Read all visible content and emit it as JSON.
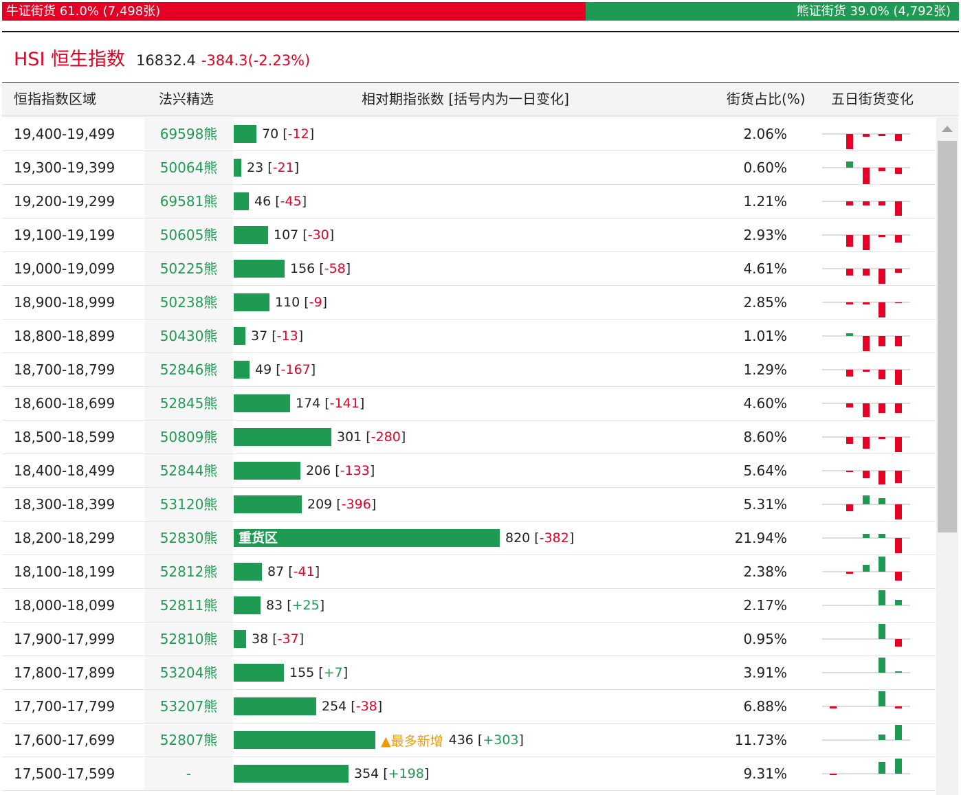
{
  "ratio_bar": {
    "bull_label": "牛证街货 61.0% (7,498张)",
    "bull_fraction": 0.61,
    "bear_label": "熊证街货 39.0% (4,792张)",
    "bear_fraction": 0.39
  },
  "index": {
    "name": "HSI 恒生指数",
    "value": "16832.4",
    "change": "-384.3(-2.23%)"
  },
  "table": {
    "headers": {
      "range": "恒指指数区域",
      "code": "法兴精选",
      "bar": "相对期指张数 [括号内为一日变化]",
      "pct": "街货占比(%)",
      "spark": "五日街货变化"
    },
    "colors": {
      "bar": "#1f9a52",
      "up": "#1f9a52",
      "down": "#e60023",
      "badge": "#f09a00"
    },
    "rows": [
      {
        "range": "19,400-19,499",
        "code": "69598熊",
        "count": 70,
        "change": "-12",
        "pct": "2.06%",
        "five_day": [
          0,
          -22,
          -4,
          -3,
          -10
        ]
      },
      {
        "range": "19,300-19,399",
        "code": "50064熊",
        "count": 23,
        "change": "-21",
        "pct": "0.60%",
        "five_day": [
          0,
          9,
          -24,
          -5,
          -9
        ]
      },
      {
        "range": "19,200-19,299",
        "code": "69581熊",
        "count": 46,
        "change": "-45",
        "pct": "1.21%",
        "five_day": [
          0,
          -6,
          -6,
          -6,
          -21
        ]
      },
      {
        "range": "19,100-19,199",
        "code": "50605熊",
        "count": 107,
        "change": "-30",
        "pct": "2.93%",
        "five_day": [
          0,
          -17,
          -22,
          -3,
          -11
        ]
      },
      {
        "range": "19,000-19,099",
        "code": "50225熊",
        "count": 156,
        "change": "-58",
        "pct": "4.61%",
        "five_day": [
          0,
          -10,
          -10,
          -22,
          -6
        ]
      },
      {
        "range": "18,900-18,999",
        "code": "50238熊",
        "count": 110,
        "change": "-9",
        "pct": "2.85%",
        "five_day": [
          0,
          -3,
          -3,
          -22,
          -1
        ]
      },
      {
        "range": "18,800-18,899",
        "code": "50430熊",
        "count": 37,
        "change": "-13",
        "pct": "1.01%",
        "five_day": [
          0,
          4,
          -22,
          -15,
          -15
        ]
      },
      {
        "range": "18,700-18,799",
        "code": "52846熊",
        "count": 49,
        "change": "-167",
        "pct": "1.29%",
        "five_day": [
          0,
          -10,
          -3,
          -14,
          -22
        ]
      },
      {
        "range": "18,600-18,699",
        "code": "52845熊",
        "count": 174,
        "change": "-141",
        "pct": "4.60%",
        "five_day": [
          0,
          -6,
          -20,
          -14,
          -14
        ]
      },
      {
        "range": "18,500-18,599",
        "code": "50809熊",
        "count": 301,
        "change": "-280",
        "pct": "8.60%",
        "five_day": [
          0,
          -10,
          -17,
          -3,
          -22
        ]
      },
      {
        "range": "18,400-18,499",
        "code": "52844熊",
        "count": 206,
        "change": "-133",
        "pct": "5.64%",
        "five_day": [
          0,
          -2,
          -11,
          -20,
          -18
        ]
      },
      {
        "range": "18,300-18,399",
        "code": "53120熊",
        "count": 209,
        "change": "-396",
        "pct": "5.31%",
        "five_day": [
          0,
          -10,
          13,
          9,
          -22
        ]
      },
      {
        "range": "18,200-18,299",
        "code": "52830熊",
        "count": 820,
        "change": "-382",
        "pct": "21.94%",
        "five_day": [
          0,
          0,
          6,
          6,
          -22
        ],
        "label": "重货区"
      },
      {
        "range": "18,100-18,199",
        "code": "52812熊",
        "count": 87,
        "change": "-41",
        "pct": "2.38%",
        "five_day": [
          0,
          -3,
          10,
          22,
          -13
        ]
      },
      {
        "range": "18,000-18,099",
        "code": "52811熊",
        "count": 83,
        "change": "+25",
        "pct": "2.17%",
        "five_day": [
          0,
          0,
          0,
          22,
          8
        ]
      },
      {
        "range": "17,900-17,999",
        "code": "52810熊",
        "count": 38,
        "change": "-37",
        "pct": "0.95%",
        "five_day": [
          0,
          0,
          0,
          22,
          -11
        ]
      },
      {
        "range": "17,800-17,899",
        "code": "53204熊",
        "count": 155,
        "change": "+7",
        "pct": "3.91%",
        "five_day": [
          0,
          0,
          0,
          22,
          2
        ]
      },
      {
        "range": "17,700-17,799",
        "code": "53207熊",
        "count": 254,
        "change": "-38",
        "pct": "6.88%",
        "five_day": [
          -3,
          0,
          0,
          22,
          -3
        ]
      },
      {
        "range": "17,600-17,699",
        "code": "52807熊",
        "count": 436,
        "change": "+303",
        "pct": "11.73%",
        "five_day": [
          0,
          0,
          0,
          8,
          22
        ],
        "badge": "▲最多新增"
      },
      {
        "range": "17,500-17,599",
        "code": "-",
        "count": 354,
        "change": "+198",
        "pct": "9.31%",
        "five_day": [
          -2,
          0,
          0,
          17,
          22
        ]
      }
    ]
  }
}
